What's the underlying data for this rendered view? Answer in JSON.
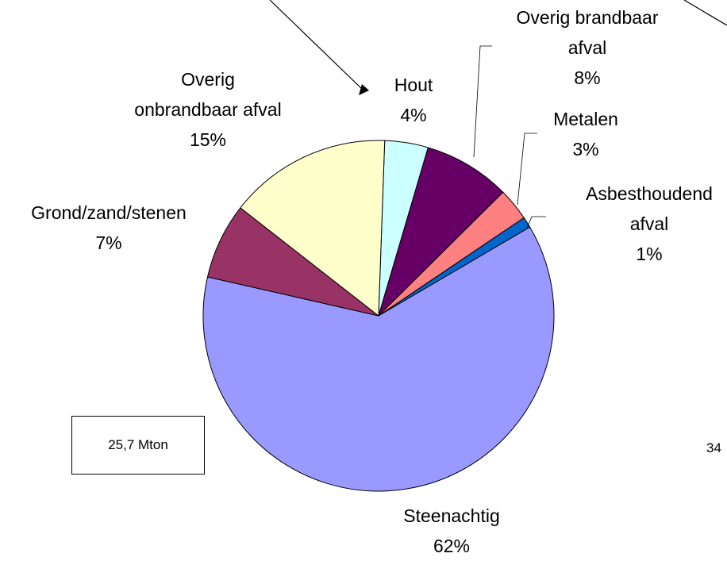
{
  "chart_data": {
    "type": "pie",
    "categories": [
      "Hout",
      "Overig brandbaar afval",
      "Metalen",
      "Asbesthoudend afval",
      "Steenachtig",
      "Grond/zand/stenen",
      "Overig onbrandbaar afval"
    ],
    "values": [
      4,
      8,
      3,
      1,
      62,
      7,
      15
    ],
    "value_labels": [
      "4%",
      "8%",
      "3%",
      "1%",
      "62%",
      "7%",
      "15%"
    ],
    "colors": [
      "#ccffff",
      "#660066",
      "#ff8080",
      "#0066cc",
      "#9999ff",
      "#993366",
      "#ffffcc"
    ],
    "annotation": "25,7 Mton",
    "page_number": "34"
  }
}
